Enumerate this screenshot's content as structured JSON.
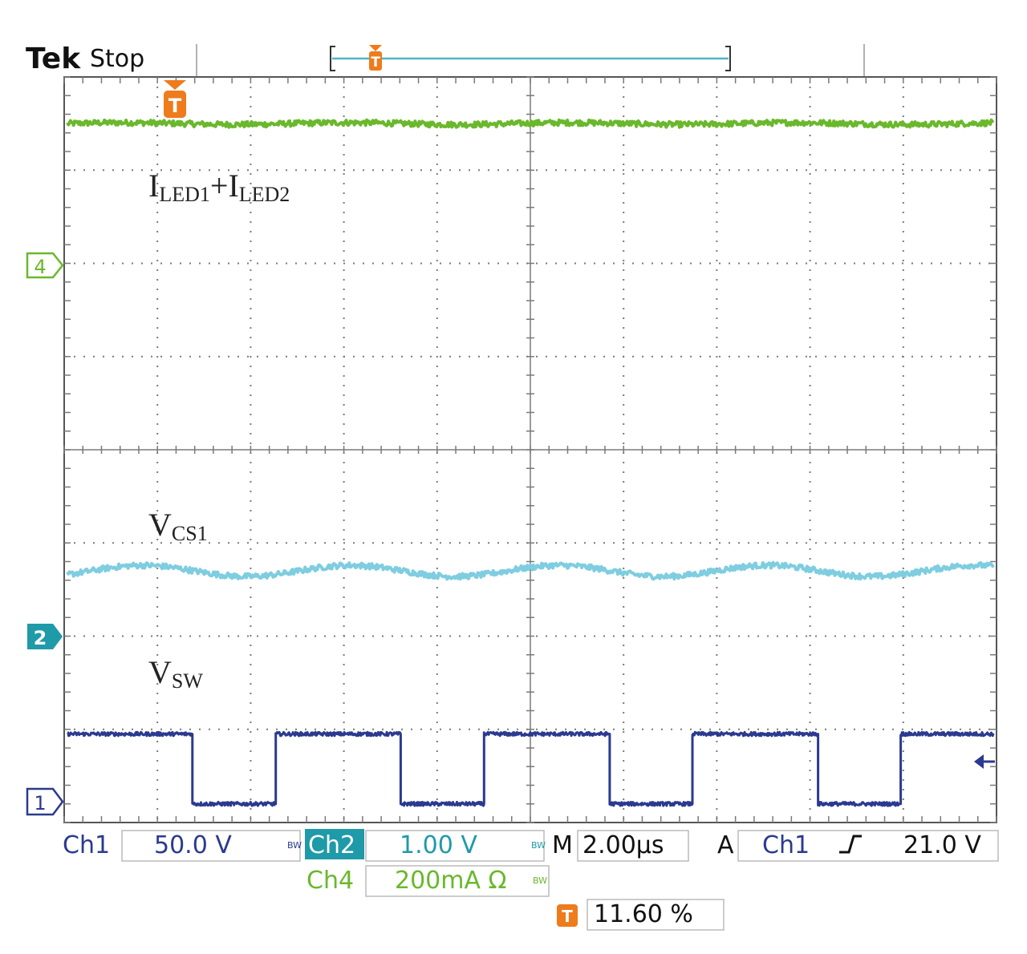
{
  "header": {
    "brand": "Tek",
    "run_state": "Stop",
    "trigger_marker": "T"
  },
  "channel_markers": {
    "ch4": "4",
    "ch2": "2",
    "ch1": "1"
  },
  "trace_labels": {
    "iled": {
      "base1": "I",
      "sub1": "LED1",
      "plus": "+",
      "base2": "I",
      "sub2": "LED2"
    },
    "vcs1": {
      "base": "V",
      "sub": "CS1"
    },
    "vsw": {
      "base": "V",
      "sub": "SW"
    }
  },
  "status": {
    "ch1_label": "Ch1",
    "ch1_scale": "50.0 V",
    "ch2_label": "Ch2",
    "ch2_scale": "1.00 V",
    "ch4_label": "Ch4",
    "ch4_scale": "200mA Ω",
    "bw_mark": "BW",
    "timebase_label": "M",
    "timebase_value": "2.00µs",
    "acq_label": "A",
    "trigger_source": "Ch1",
    "trigger_slope": "rising",
    "trigger_level": "21.0 V",
    "trigger_position_marker": "T",
    "trigger_position": "11.60 %"
  },
  "colors": {
    "ch1": "#2b3a8f",
    "ch2": "#7ecde0",
    "ch2_badge": "#1f9aa8",
    "ch4": "#6ab82c",
    "trigger": "#ee7b1c",
    "grid": "#7a7a7a"
  },
  "chart_data": {
    "type": "line",
    "title": "",
    "x_unit": "µs",
    "x_range": [
      0,
      20
    ],
    "y_divisions": 8,
    "x_divisions": 10,
    "grid": true,
    "series": [
      {
        "name": "ILED1+ILED2",
        "channel": "Ch4",
        "kind": "dc",
        "y_div": 3.5,
        "noise_div": 0.03
      },
      {
        "name": "VCS1",
        "channel": "Ch2",
        "kind": "ripple",
        "y_div": -1.3,
        "amplitude_div": 0.06,
        "period_us": 4.5,
        "noise_div": 0.03
      },
      {
        "name": "VSW",
        "channel": "Ch1",
        "kind": "pulse",
        "high_div": -3.05,
        "low_div": -3.8,
        "period_us": 4.5,
        "duty": 0.6,
        "noise_div": 0.02
      }
    ]
  }
}
